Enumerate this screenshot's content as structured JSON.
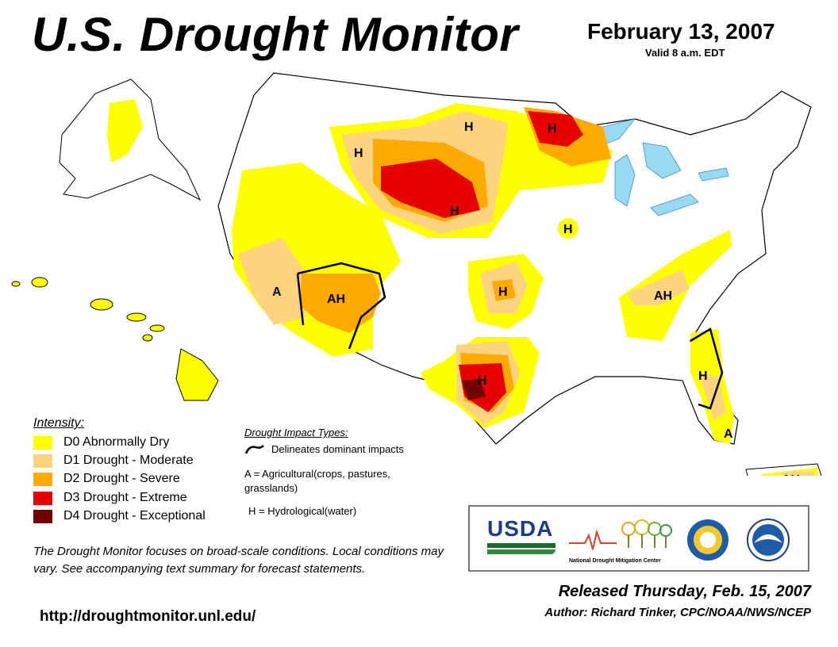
{
  "header": {
    "title": "U.S. Drought Monitor",
    "date": "February 13, 2007",
    "valid": "Valid 8 a.m. EDT"
  },
  "colors": {
    "d0": "#ffff00",
    "d1": "#fcd37f",
    "d2": "#ffaa00",
    "d3": "#e60000",
    "d4": "#730000",
    "water": "#99d9f2",
    "river": "#3a8fd8"
  },
  "legend": {
    "title": "Intensity:",
    "items": [
      {
        "code": "D0",
        "label": "D0 Abnormally Dry"
      },
      {
        "code": "D1",
        "label": "D1 Drought - Moderate"
      },
      {
        "code": "D2",
        "label": "D2 Drought - Severe"
      },
      {
        "code": "D3",
        "label": "D3 Drought - Extreme"
      },
      {
        "code": "D4",
        "label": "D4 Drought - Exceptional"
      }
    ]
  },
  "impacts": {
    "title": "Drought Impact Types:",
    "line_text": "Delineates dominant impacts",
    "a_text": "A = Agricultural(crops, pastures, grasslands)",
    "h_text": "H = Hydrological(water)"
  },
  "map_labels": [
    {
      "id": "h-idaho",
      "text": "H"
    },
    {
      "id": "h-nd",
      "text": "H"
    },
    {
      "id": "h-mn",
      "text": "H"
    },
    {
      "id": "h-sd",
      "text": "H"
    },
    {
      "id": "h-iowa",
      "text": "H"
    },
    {
      "id": "h-kansas",
      "text": "H"
    },
    {
      "id": "h-texas",
      "text": "H"
    },
    {
      "id": "h-florida",
      "text": "H"
    },
    {
      "id": "a-california",
      "text": "A"
    },
    {
      "id": "ah-southwest",
      "text": "AH"
    },
    {
      "id": "ah-southeast",
      "text": "AH"
    },
    {
      "id": "a-florida",
      "text": "A"
    },
    {
      "id": "ah-puertorico",
      "text": "AH"
    }
  ],
  "note": "The Drought Monitor focuses on broad-scale conditions. Local conditions may vary. See accompanying text summary for forecast statements.",
  "url": "http://droughtmonitor.unl.edu/",
  "logos": {
    "usda": "USDA",
    "ndmc": "National Drought Mitigation Center"
  },
  "footer": {
    "released": "Released Thursday, Feb. 15, 2007",
    "author": "Author: Richard Tinker, CPC/NOAA/NWS/NCEP"
  }
}
